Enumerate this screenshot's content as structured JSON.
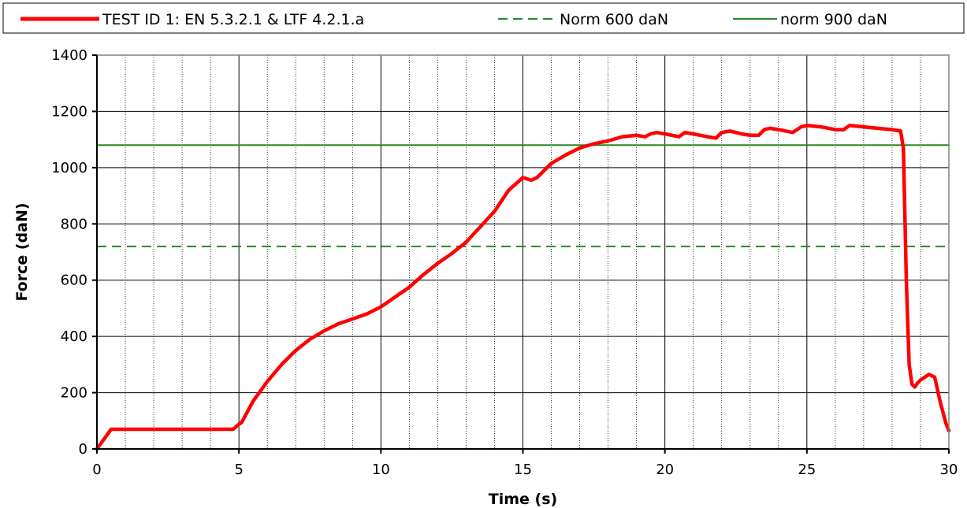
{
  "chart_data": {
    "type": "line",
    "title": "",
    "xlabel": "Time (s)",
    "ylabel": "Force (daN)",
    "xlim": [
      0,
      30
    ],
    "ylim": [
      0,
      1400
    ],
    "xticks": [
      0,
      5,
      10,
      15,
      20,
      25,
      30
    ],
    "yticks": [
      0,
      200,
      400,
      600,
      800,
      1000,
      1200,
      1400
    ],
    "x_minor_step": 1,
    "y_minor_step": 40,
    "grid": true,
    "legend_position": "top",
    "series": [
      {
        "name": "TEST ID 1: EN 5.3.2.1 & LTF 4.2.1.a",
        "color": "#ff0000",
        "style": "solid-thick",
        "x": [
          0,
          0.5,
          1,
          2,
          3,
          4,
          4.8,
          5.0,
          5.1,
          5.5,
          6.0,
          6.5,
          7.0,
          7.5,
          8.0,
          8.5,
          9.0,
          9.5,
          10.0,
          10.5,
          11.0,
          11.5,
          12.0,
          12.5,
          13.0,
          13.5,
          14.0,
          14.5,
          15.0,
          15.3,
          15.5,
          16.0,
          16.5,
          17.0,
          17.5,
          18.0,
          18.5,
          19.0,
          19.3,
          19.5,
          19.7,
          20.0,
          20.5,
          20.7,
          21.0,
          21.5,
          21.8,
          22.0,
          22.3,
          22.7,
          23.0,
          23.3,
          23.5,
          23.7,
          24.0,
          24.5,
          24.8,
          25.0,
          25.5,
          26.0,
          26.3,
          26.5,
          27.0,
          27.5,
          28.0,
          28.3,
          28.4,
          28.5,
          28.6,
          28.7,
          28.8,
          28.9,
          29.0,
          29.3,
          29.5,
          29.7,
          29.9,
          30.0
        ],
        "y": [
          0,
          70,
          70,
          70,
          70,
          70,
          70,
          88,
          95,
          170,
          240,
          300,
          350,
          390,
          420,
          445,
          462,
          480,
          505,
          540,
          575,
          620,
          660,
          695,
          735,
          790,
          845,
          920,
          965,
          955,
          965,
          1015,
          1045,
          1070,
          1085,
          1095,
          1110,
          1115,
          1110,
          1120,
          1125,
          1120,
          1110,
          1125,
          1120,
          1110,
          1105,
          1125,
          1130,
          1120,
          1115,
          1115,
          1135,
          1140,
          1135,
          1125,
          1145,
          1150,
          1145,
          1135,
          1135,
          1150,
          1145,
          1140,
          1135,
          1130,
          1070,
          600,
          300,
          230,
          220,
          235,
          245,
          265,
          255,
          165,
          90,
          65
        ]
      },
      {
        "name": "Norm 600 daN",
        "color": "#228b22",
        "style": "dashed",
        "x": [
          0,
          30
        ],
        "y": [
          720,
          720
        ]
      },
      {
        "name": "norm 900 daN",
        "color": "#228b22",
        "style": "solid",
        "x": [
          0,
          30
        ],
        "y": [
          1080,
          1080
        ]
      }
    ]
  }
}
